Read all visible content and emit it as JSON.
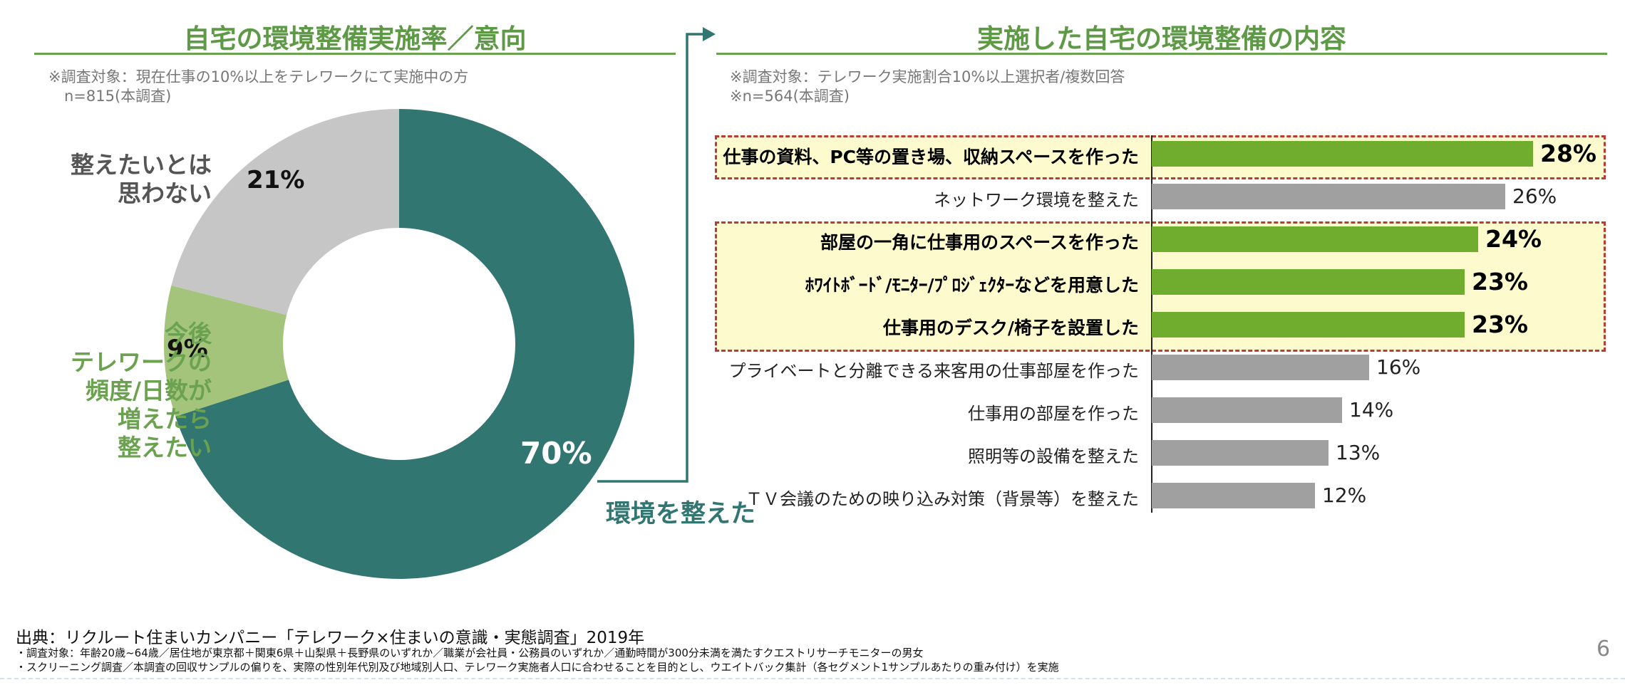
{
  "left_panel": {
    "title": "自宅の環境整備実施率／意向",
    "note_line1": "※調査対象：現在仕事の10%以上をテレワークにて実施中の方",
    "note_line2": "n=815(本調査)"
  },
  "right_panel": {
    "title": "実施した自宅の環境整備の内容",
    "note_line1": "※調査対象：テレワーク実施割合10%以上選択者/複数回答",
    "note_line2": "※n=564(本調査)"
  },
  "connector_label": "環境を整えた",
  "chart_data": [
    {
      "type": "pie",
      "title": "自宅の環境整備実施率／意向",
      "slices": [
        {
          "label": "環境を整えた",
          "value": 70,
          "value_label": "70%",
          "color": "#317670",
          "label_color": "#317670"
        },
        {
          "label_lines": [
            "今後",
            "テレワークの",
            "頻度/日数が",
            "増えたら",
            "整えたい"
          ],
          "value": 9,
          "value_label": "9%",
          "color": "#a3c47a",
          "label_color": "#6aa24f"
        },
        {
          "label_lines": [
            "整えたいとは",
            "思わない"
          ],
          "value": 21,
          "value_label": "21%",
          "color": "#c6c6c6",
          "label_color": "#555555"
        }
      ]
    },
    {
      "type": "bar",
      "orientation": "horizontal",
      "title": "実施した自宅の環境整備の内容",
      "categories": [
        "仕事の資料、PC等の置き場、収納スペースを作った",
        "ネットワーク環境を整えた",
        "部屋の一角に仕事用のスペースを作った",
        "ﾎﾜｲﾄﾎﾞｰﾄﾞ/ﾓﾆﾀｰ/ﾌﾟﾛｼﾞｪｸﾀｰなどを用意した",
        "仕事用のデスク/椅子を設置した",
        "プライベートと分離できる来客用の仕事部屋を作った",
        "仕事用の部屋を作った",
        "照明等の設備を整えた",
        "ＴＶ会議のための映り込み対策（背景等）を整えた"
      ],
      "values": [
        28,
        26,
        24,
        23,
        23,
        16,
        14,
        13,
        12
      ],
      "value_labels": [
        "28%",
        "26%",
        "24%",
        "23%",
        "23%",
        "16%",
        "14%",
        "13%",
        "12%"
      ],
      "highlighted": [
        true,
        false,
        true,
        true,
        true,
        false,
        false,
        false,
        false
      ],
      "highlight_color": "#70ad2f",
      "default_color": "#a0a0a0",
      "xlim": [
        0,
        33
      ]
    }
  ],
  "footer": {
    "source": "出典：リクルート住まいカンパニー「テレワーク×住まいの意識・実態調査」2019年",
    "note1": "・調査対象：年齢20歳~64歳／居住地が東京都＋関東6県＋山梨県＋長野県のいずれか／職業が会社員・公務員のいずれか／通勤時間が300分未満を満たすクエストリサーチモニターの男女",
    "note2": "・スクリーニング調査／本調査の回収サンプルの偏りを、実際の性別年代別及び地域別人口、テレワーク実施者人口に合わせることを目的とし、ウエイトバック集計（各セグメント1サンプルあたりの重み付け）を実施",
    "page_number": "6"
  }
}
